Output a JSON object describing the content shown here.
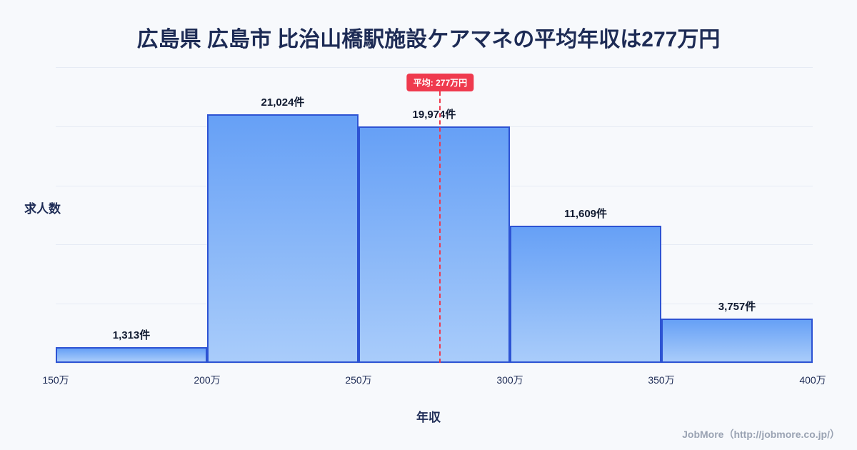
{
  "page": {
    "title": "広島県 広島市 比治山橋駅施設ケアマネの平均年収は277万円",
    "footer": "JobMore（http://jobmore.co.jp/）"
  },
  "chart_data": {
    "type": "bar",
    "title": "広島県 広島市 比治山橋駅施設ケアマネの平均年収は277万円",
    "xlabel": "年収",
    "ylabel": "求人数",
    "bin_edges": [
      150,
      200,
      250,
      300,
      350,
      400
    ],
    "tick_labels": [
      "150万",
      "200万",
      "250万",
      "300万",
      "350万",
      "400万"
    ],
    "values": [
      1313,
      21024,
      19974,
      11609,
      3757
    ],
    "value_labels": [
      "1,313件",
      "21,024件",
      "19,974件",
      "11,609件",
      "3,757件"
    ],
    "mean": 277,
    "mean_label": "平均: 277万円",
    "ylim": [
      0,
      25000
    ],
    "grid_step": 5000,
    "grid": true,
    "legend": "none",
    "colors": {
      "bar_top": "#66a0f6",
      "bar_bottom": "#a9ccfa",
      "bar_border": "#2d53d3",
      "mean_line": "#ef3a4e",
      "title_text": "#1d2b55",
      "background": "#f7f9fc"
    }
  }
}
